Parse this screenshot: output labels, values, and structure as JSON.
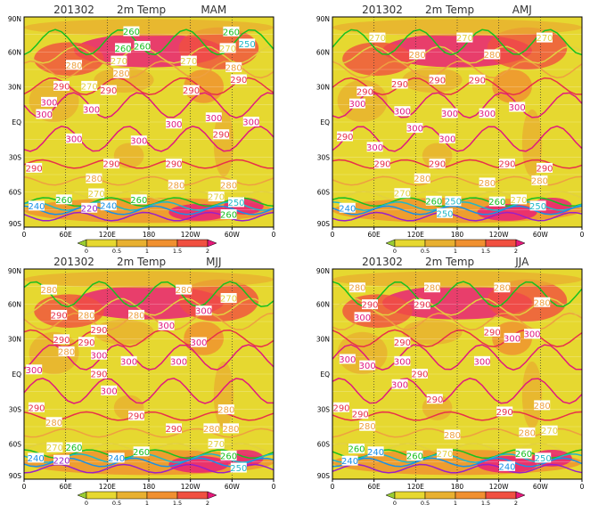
{
  "panels": [
    {
      "date": "201302",
      "variable": "2m Temp",
      "season": "MAM",
      "contour_labels": [
        260,
        260,
        250,
        260,
        260,
        270,
        280,
        270,
        280,
        270,
        280,
        290,
        290,
        270,
        290,
        290,
        300,
        300,
        300,
        300,
        300,
        300,
        290,
        300,
        300,
        290,
        290,
        290,
        280,
        280,
        280,
        270,
        260,
        260,
        270,
        260,
        250,
        240,
        220,
        240
      ]
    },
    {
      "date": "201302",
      "variable": "2m Temp",
      "season": "AMJ",
      "contour_labels": [
        270,
        270,
        270,
        280,
        280,
        290,
        290,
        290,
        290,
        300,
        300,
        300,
        300,
        300,
        300,
        290,
        300,
        300,
        290,
        290,
        290,
        290,
        280,
        280,
        280,
        270,
        260,
        250,
        270,
        260,
        250,
        240,
        250
      ]
    },
    {
      "date": "201302",
      "variable": "2m Temp",
      "season": "MJJ",
      "contour_labels": [
        280,
        280,
        280,
        270,
        290,
        280,
        300,
        290,
        300,
        290,
        290,
        280,
        300,
        300,
        300,
        300,
        300,
        300,
        290,
        290,
        290,
        280,
        280,
        290,
        280,
        280,
        270,
        260,
        240,
        220,
        240,
        260,
        270,
        260,
        250
      ]
    },
    {
      "date": "201302",
      "variable": "2m Temp",
      "season": "JJA",
      "contour_labels": [
        280,
        280,
        280,
        280,
        290,
        290,
        300,
        290,
        290,
        300,
        300,
        300,
        300,
        300,
        300,
        300,
        290,
        290,
        290,
        290,
        290,
        280,
        280,
        280,
        280,
        270,
        260,
        240,
        240,
        260,
        270,
        260,
        250,
        240
      ]
    }
  ],
  "lon_ticks": [
    "0",
    "60E",
    "120E",
    "180",
    "120W",
    "60W",
    "0"
  ],
  "lat_ticks": [
    "90N",
    "60N",
    "30N",
    "EQ",
    "30S",
    "60S",
    "90S"
  ],
  "colorbar": {
    "labels": [
      "0",
      "0.5",
      "1",
      "1.5",
      "2"
    ],
    "colors": [
      "#9acd32",
      "#e6d830",
      "#e8b030",
      "#f09030",
      "#f05040",
      "#e8187a"
    ]
  },
  "contour_colors": {
    "300": "#e0197e",
    "290": "#e8304a",
    "280": "#eea040",
    "270": "#e2d040",
    "260": "#18c020",
    "250": "#20b8c8",
    "240": "#1890e8",
    "220": "#9a20c8"
  }
}
